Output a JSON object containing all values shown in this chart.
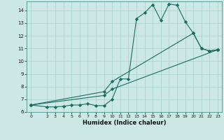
{
  "xlabel": "Humidex (Indice chaleur)",
  "bg_color": "#cce8e4",
  "grid_color": "#aad4ce",
  "line_color": "#1a6b60",
  "xlim": [
    -0.5,
    23.5
  ],
  "ylim": [
    6,
    14.7
  ],
  "yticks": [
    6,
    7,
    8,
    9,
    10,
    11,
    12,
    13,
    14
  ],
  "xticks": [
    0,
    2,
    3,
    4,
    5,
    6,
    7,
    8,
    9,
    10,
    11,
    12,
    13,
    14,
    15,
    16,
    17,
    18,
    19,
    20,
    21,
    22,
    23
  ],
  "line1_x": [
    0,
    2,
    3,
    4,
    5,
    6,
    7,
    8,
    9,
    10,
    11,
    12,
    13,
    14,
    15,
    16,
    17,
    18,
    19,
    20,
    21,
    22,
    23
  ],
  "line1_y": [
    6.55,
    6.4,
    6.4,
    6.45,
    6.55,
    6.55,
    6.65,
    6.5,
    6.5,
    7.0,
    8.6,
    8.6,
    13.35,
    13.8,
    14.45,
    13.2,
    14.5,
    14.4,
    13.1,
    12.2,
    11.0,
    10.8,
    10.9
  ],
  "line2_x": [
    0,
    9,
    10,
    20,
    21,
    22,
    23
  ],
  "line2_y": [
    6.55,
    7.6,
    8.4,
    12.2,
    11.0,
    10.8,
    10.9
  ],
  "line3_x": [
    0,
    9,
    10,
    23
  ],
  "line3_y": [
    6.55,
    7.3,
    7.8,
    10.9
  ]
}
